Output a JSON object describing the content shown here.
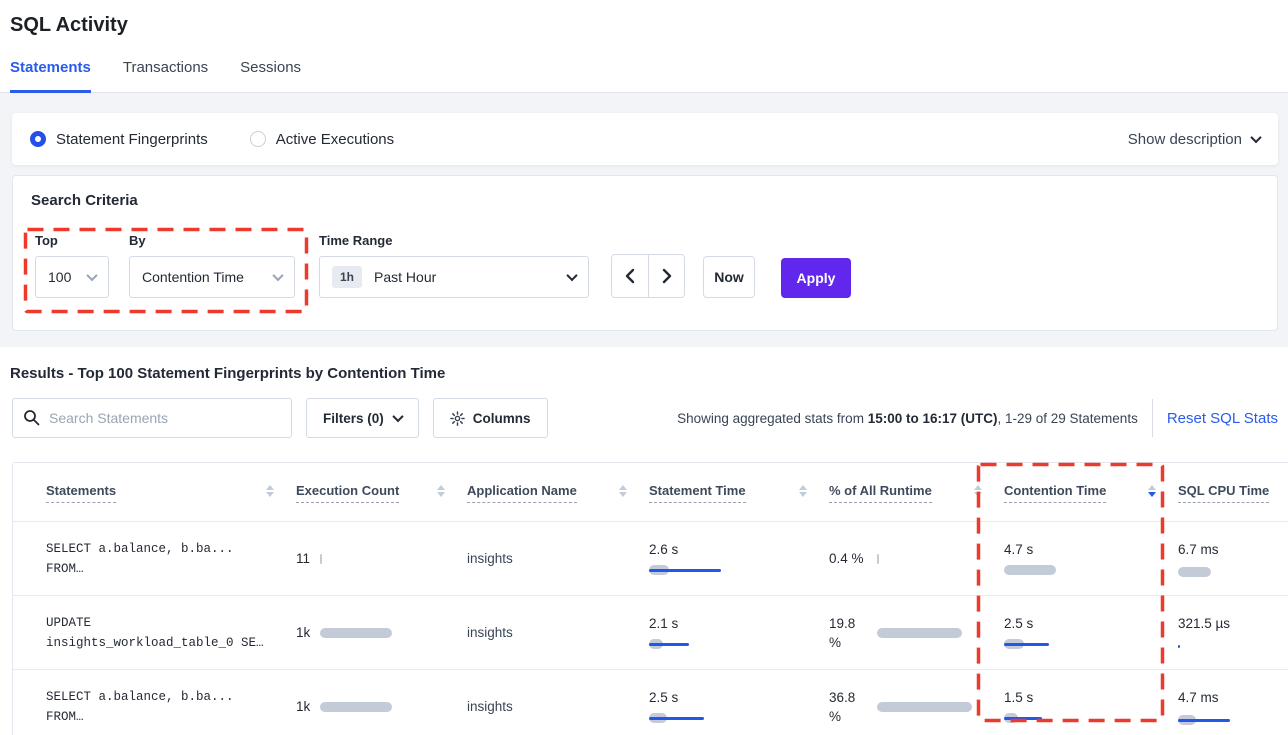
{
  "page_title": "SQL Activity",
  "tabs": {
    "items": [
      {
        "label": "Statements"
      },
      {
        "label": "Transactions"
      },
      {
        "label": "Sessions"
      }
    ],
    "active": "Statements"
  },
  "view_mode": {
    "options": [
      {
        "label": "Statement Fingerprints",
        "selected": true
      },
      {
        "label": "Active Executions",
        "selected": false
      }
    ],
    "show_description_label": "Show description"
  },
  "search_criteria": {
    "title": "Search Criteria",
    "top": {
      "label": "Top",
      "value": "100"
    },
    "by": {
      "label": "By",
      "value": "Contention Time"
    },
    "time_range": {
      "label": "Time Range",
      "badge": "1h",
      "value": "Past Hour"
    },
    "now_label": "Now",
    "apply_label": "Apply"
  },
  "results": {
    "title": "Results - Top 100 Statement Fingerprints by Contention Time",
    "search_placeholder": "Search Statements",
    "filters_label": "Filters (0)",
    "columns_label": "Columns",
    "stats_prefix": "Showing aggregated stats from ",
    "stats_bold": "15:00 to 16:17 (UTC)",
    "stats_suffix": ", 1-29 of 29 Statements",
    "reset_label": "Reset SQL Stats"
  },
  "table": {
    "columns": [
      "Statements",
      "Execution Count",
      "Application Name",
      "Statement Time",
      "% of All Runtime",
      "Contention Time",
      "SQL CPU Time"
    ],
    "sorted_column": "Contention Time",
    "sort_direction": "desc",
    "rows": [
      {
        "statement": [
          "SELECT a.balance, b.ba...",
          "FROM…"
        ],
        "exec": {
          "value": "11",
          "bar": 2,
          "line": 0
        },
        "app": "insights",
        "statement_time": {
          "value": "2.6 s",
          "bar": 20,
          "line": 72
        },
        "runtime": {
          "value": "0.4 %",
          "bar": 2,
          "line": 0
        },
        "contention": {
          "value": "4.7 s",
          "bar": 52,
          "line": 0
        },
        "cpu": {
          "value": "6.7 ms",
          "bar": 33,
          "line": 0
        }
      },
      {
        "statement": [
          "UPDATE",
          "insights_workload_table_0 SE…"
        ],
        "exec": {
          "value": "1k",
          "bar": 72,
          "line": 0
        },
        "app": "insights",
        "statement_time": {
          "value": "2.1 s",
          "bar": 14,
          "line": 40
        },
        "runtime": {
          "value": "19.8 %",
          "bar": 85,
          "line": 0
        },
        "contention": {
          "value": "2.5 s",
          "bar": 20,
          "line": 45
        },
        "cpu": {
          "value": "321.5 µs",
          "bar": 0,
          "line": 2
        }
      },
      {
        "statement": [
          "SELECT a.balance, b.ba...",
          "FROM…"
        ],
        "exec": {
          "value": "1k",
          "bar": 72,
          "line": 0
        },
        "app": "insights",
        "statement_time": {
          "value": "2.5 s",
          "bar": 18,
          "line": 55
        },
        "runtime": {
          "value": "36.8 %",
          "bar": 95,
          "line": 0
        },
        "contention": {
          "value": "1.5 s",
          "bar": 14,
          "line": 38
        },
        "cpu": {
          "value": "4.7 ms",
          "bar": 18,
          "line": 52
        }
      }
    ]
  },
  "annotations": {
    "color": "#EE3A2C",
    "box1_target": "top-by-controls",
    "box2_target": "contention-time-column"
  },
  "colors": {
    "accent_blue": "#2A5CEB",
    "bar_blue": "#2456E8",
    "bar_gray": "#C3CAD8",
    "apply_purple": "#6127EC",
    "annotation_red": "#EE3A2C"
  }
}
